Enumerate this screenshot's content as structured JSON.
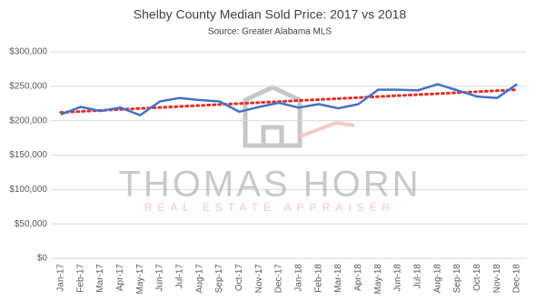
{
  "chart_data": {
    "type": "line",
    "title": "Shelby County Median Sold Price: 2017 vs 2018",
    "subtitle": "Source: Greater Alabama MLS",
    "categories": [
      "Jan-17",
      "Feb-17",
      "Mar-17",
      "Apr-17",
      "May-17",
      "Jun-17",
      "Jul-17",
      "Aug-17",
      "Sep-17",
      "Oct-17",
      "Nov-17",
      "Dec-17",
      "Jan-18",
      "Feb-18",
      "Mar-18",
      "Apr-18",
      "May-18",
      "Jun-18",
      "Jul-18",
      "Aug-18",
      "Sep-18",
      "Oct-18",
      "Nov-18",
      "Dec-18"
    ],
    "series": [
      {
        "color": "#4472c4",
        "values": [
          209000,
          220000,
          214000,
          219000,
          208000,
          228000,
          233000,
          230000,
          228000,
          213000,
          220000,
          226000,
          219000,
          224000,
          218000,
          224000,
          245000,
          245000,
          244000,
          253000,
          244000,
          235000,
          233000,
          253000
        ]
      }
    ],
    "trendline": {
      "color": "#e0302c",
      "start": 212000,
      "end": 245000
    },
    "ylim": [
      0,
      300000
    ],
    "yticks": [
      {
        "value": 0,
        "label": "$0"
      },
      {
        "value": 50000,
        "label": "$50,000"
      },
      {
        "value": 100000,
        "label": "$100,000"
      },
      {
        "value": 150000,
        "label": "$150,000"
      },
      {
        "value": 200000,
        "label": "$200,000"
      },
      {
        "value": 250000,
        "label": "$250,000"
      },
      {
        "value": 300000,
        "label": "$300,000"
      }
    ],
    "grid": true,
    "watermark": {
      "name": "THOMAS HORN",
      "tagline": "REAL ESTATE APPRAISER"
    }
  }
}
